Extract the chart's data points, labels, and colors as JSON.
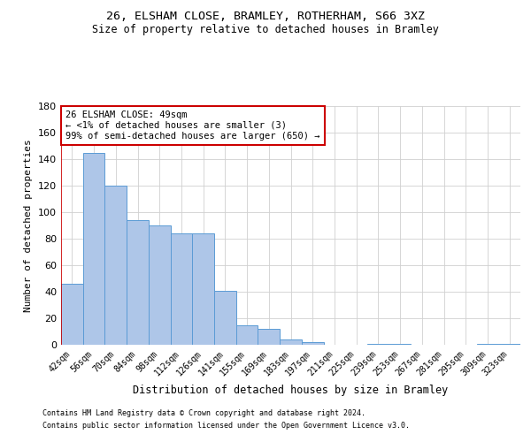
{
  "title_line1": "26, ELSHAM CLOSE, BRAMLEY, ROTHERHAM, S66 3XZ",
  "title_line2": "Size of property relative to detached houses in Bramley",
  "xlabel": "Distribution of detached houses by size in Bramley",
  "ylabel": "Number of detached properties",
  "categories": [
    "42sqm",
    "56sqm",
    "70sqm",
    "84sqm",
    "98sqm",
    "112sqm",
    "126sqm",
    "141sqm",
    "155sqm",
    "169sqm",
    "183sqm",
    "197sqm",
    "211sqm",
    "225sqm",
    "239sqm",
    "253sqm",
    "267sqm",
    "281sqm",
    "295sqm",
    "309sqm",
    "323sqm"
  ],
  "values": [
    46,
    145,
    120,
    94,
    90,
    84,
    84,
    41,
    15,
    12,
    4,
    2,
    0,
    0,
    1,
    1,
    0,
    0,
    0,
    1,
    1
  ],
  "bar_color": "#aec6e8",
  "bar_edge_color": "#5b9bd5",
  "ylim": [
    0,
    180
  ],
  "yticks": [
    0,
    20,
    40,
    60,
    80,
    100,
    120,
    140,
    160,
    180
  ],
  "annotation_text": "26 ELSHAM CLOSE: 49sqm\n← <1% of detached houses are smaller (3)\n99% of semi-detached houses are larger (650) →",
  "annotation_box_color": "#ffffff",
  "annotation_box_edge_color": "#cc0000",
  "footer_line1": "Contains HM Land Registry data © Crown copyright and database right 2024.",
  "footer_line2": "Contains public sector information licensed under the Open Government Licence v3.0.",
  "background_color": "#ffffff",
  "grid_color": "#d0d0d0"
}
